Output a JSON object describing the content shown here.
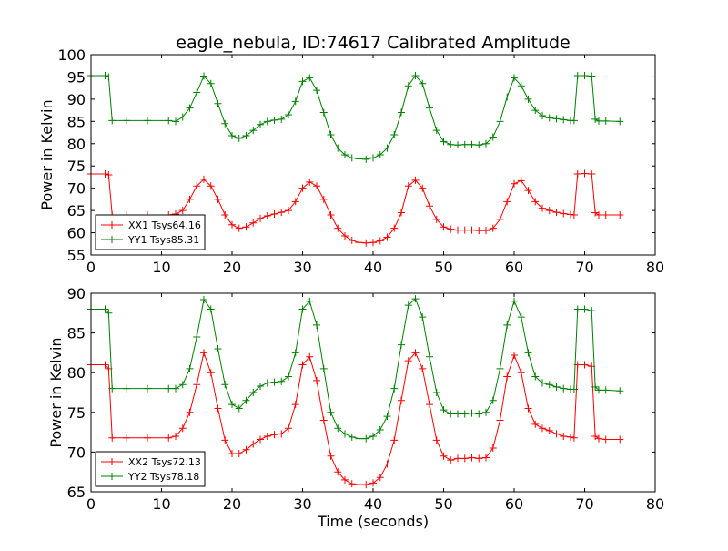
{
  "figure": {
    "title": "eagle_nebula, ID:74617 Calibrated Amplitude"
  },
  "chart_data": [
    {
      "type": "line",
      "title": "eagle_nebula, ID:74617 Calibrated Amplitude",
      "xlabel": "",
      "ylabel": "Power in Kelvin",
      "xlim": [
        0,
        80
      ],
      "ylim": [
        55,
        100
      ],
      "xticks": [
        0,
        10,
        20,
        30,
        40,
        50,
        60,
        70,
        80
      ],
      "yticks": [
        55,
        60,
        65,
        70,
        75,
        80,
        85,
        90,
        95,
        100
      ],
      "grid": false,
      "legend_position": "bottom-left",
      "marker": "+",
      "series": [
        {
          "name": "XX1 Tsys64.16",
          "color": "#ff0000",
          "x": [
            0.0,
            2.0,
            2.5,
            3.0,
            5.0,
            8.0,
            11.0,
            12.0,
            13.0,
            14.0,
            15.0,
            16.0,
            17.0,
            18.0,
            19.0,
            20.0,
            21.0,
            22.0,
            23.0,
            24.0,
            25.0,
            26.0,
            27.0,
            28.0,
            29.0,
            30.0,
            31.0,
            32.0,
            33.0,
            34.0,
            35.0,
            36.0,
            37.0,
            38.0,
            39.0,
            40.0,
            41.0,
            42.0,
            43.0,
            44.0,
            45.0,
            46.0,
            47.0,
            48.0,
            49.0,
            50.0,
            51.0,
            52.0,
            53.0,
            54.0,
            55.0,
            56.0,
            57.0,
            58.0,
            59.0,
            60.0,
            61.0,
            62.0,
            63.0,
            64.0,
            65.0,
            66.0,
            67.0,
            68.0,
            68.5,
            69.0,
            70.0,
            71.0,
            71.5,
            72.0,
            73.0,
            75.0
          ],
          "y": [
            73.2,
            73.2,
            73.0,
            64.0,
            64.0,
            64.0,
            64.0,
            64.2,
            65.0,
            67.5,
            70.5,
            72.0,
            70.5,
            67.5,
            64.0,
            61.8,
            61.0,
            61.3,
            62.2,
            63.2,
            63.8,
            64.2,
            64.6,
            65.0,
            67.0,
            70.0,
            71.4,
            70.5,
            67.5,
            64.0,
            61.0,
            59.3,
            58.3,
            57.8,
            57.7,
            57.8,
            58.2,
            59.0,
            61.0,
            64.5,
            70.5,
            71.8,
            70.0,
            66.0,
            63.0,
            61.3,
            60.8,
            60.6,
            60.6,
            60.6,
            60.5,
            60.5,
            61.0,
            63.0,
            67.0,
            71.0,
            71.7,
            69.5,
            67.0,
            65.5,
            65.0,
            64.6,
            64.3,
            64.1,
            64.0,
            73.2,
            73.3,
            73.2,
            64.5,
            64.0,
            64.0,
            64.0
          ]
        },
        {
          "name": "YY1 Tsys85.31",
          "color": "#008000",
          "x": [
            0.0,
            2.0,
            2.5,
            3.0,
            5.0,
            8.0,
            11.0,
            12.0,
            13.0,
            14.0,
            15.0,
            16.0,
            17.0,
            18.0,
            19.0,
            20.0,
            21.0,
            22.0,
            23.0,
            24.0,
            25.0,
            26.0,
            27.0,
            28.0,
            29.0,
            30.0,
            31.0,
            32.0,
            33.0,
            34.0,
            35.0,
            36.0,
            37.0,
            38.0,
            39.0,
            40.0,
            41.0,
            42.0,
            43.0,
            44.0,
            45.0,
            46.0,
            47.0,
            48.0,
            49.0,
            50.0,
            51.0,
            52.0,
            53.0,
            54.0,
            55.0,
            56.0,
            57.0,
            58.0,
            59.0,
            60.0,
            61.0,
            62.0,
            63.0,
            64.0,
            65.0,
            66.0,
            67.0,
            68.0,
            68.5,
            69.0,
            70.0,
            71.0,
            71.5,
            72.0,
            73.0,
            75.0
          ],
          "y": [
            95.3,
            95.3,
            95.0,
            85.2,
            85.2,
            85.2,
            85.2,
            85.0,
            86.0,
            88.0,
            91.5,
            95.2,
            93.5,
            89.0,
            84.5,
            81.8,
            81.2,
            81.8,
            83.0,
            84.3,
            85.0,
            85.3,
            85.5,
            86.5,
            89.5,
            94.0,
            94.8,
            92.0,
            87.0,
            82.0,
            79.0,
            77.5,
            76.8,
            76.6,
            76.5,
            76.8,
            77.5,
            79.0,
            82.0,
            87.0,
            93.0,
            95.3,
            93.5,
            88.0,
            83.0,
            80.5,
            79.8,
            79.7,
            79.8,
            79.8,
            79.7,
            80.0,
            81.5,
            85.0,
            90.5,
            94.8,
            93.0,
            90.0,
            87.5,
            86.3,
            85.8,
            85.6,
            85.4,
            85.2,
            85.2,
            95.3,
            95.3,
            95.2,
            85.5,
            85.1,
            85.1,
            85.0
          ]
        }
      ]
    },
    {
      "type": "line",
      "title": "",
      "xlabel": "Time (seconds)",
      "ylabel": "Power in Kelvin",
      "xlim": [
        0,
        80
      ],
      "ylim": [
        65,
        90
      ],
      "xticks": [
        0,
        10,
        20,
        30,
        40,
        50,
        60,
        70,
        80
      ],
      "yticks": [
        65,
        70,
        75,
        80,
        85,
        90
      ],
      "grid": false,
      "legend_position": "bottom-left",
      "marker": "+",
      "series": [
        {
          "name": "XX2 Tsys72.13",
          "color": "#ff0000",
          "x": [
            0.0,
            2.0,
            2.5,
            3.0,
            5.0,
            8.0,
            11.0,
            12.0,
            13.0,
            14.0,
            15.0,
            16.0,
            17.0,
            18.0,
            19.0,
            20.0,
            21.0,
            22.0,
            23.0,
            24.0,
            25.0,
            26.0,
            27.0,
            28.0,
            29.0,
            30.0,
            31.0,
            32.0,
            33.0,
            34.0,
            35.0,
            36.0,
            37.0,
            38.0,
            39.0,
            40.0,
            41.0,
            42.0,
            43.0,
            44.0,
            45.0,
            46.0,
            47.0,
            48.0,
            49.0,
            50.0,
            51.0,
            52.0,
            53.0,
            54.0,
            55.0,
            56.0,
            57.0,
            58.0,
            59.0,
            60.0,
            61.0,
            62.0,
            63.0,
            64.0,
            65.0,
            66.0,
            67.0,
            68.0,
            68.5,
            69.0,
            70.0,
            71.0,
            71.5,
            72.0,
            73.0,
            75.0
          ],
          "y": [
            81.0,
            81.0,
            80.5,
            71.8,
            71.8,
            71.8,
            71.8,
            72.0,
            73.0,
            75.0,
            78.5,
            82.5,
            80.0,
            75.5,
            71.5,
            69.8,
            69.8,
            70.3,
            71.0,
            71.6,
            72.0,
            72.2,
            72.3,
            73.0,
            76.0,
            81.0,
            82.0,
            79.0,
            74.0,
            69.5,
            67.5,
            66.5,
            66.0,
            65.9,
            65.9,
            66.1,
            66.8,
            68.5,
            71.5,
            76.5,
            81.5,
            82.5,
            80.5,
            76.0,
            71.5,
            69.5,
            69.0,
            69.2,
            69.2,
            69.3,
            69.2,
            69.3,
            70.5,
            74.0,
            79.5,
            82.2,
            80.0,
            75.5,
            73.5,
            73.0,
            72.7,
            72.3,
            72.0,
            71.9,
            71.8,
            81.0,
            81.0,
            80.8,
            72.0,
            71.7,
            71.6,
            71.6
          ]
        },
        {
          "name": "YY2 Tsys78.18",
          "color": "#008000",
          "x": [
            0.0,
            2.0,
            2.5,
            3.0,
            5.0,
            8.0,
            11.0,
            12.0,
            13.0,
            14.0,
            15.0,
            16.0,
            17.0,
            18.0,
            19.0,
            20.0,
            21.0,
            22.0,
            23.0,
            24.0,
            25.0,
            26.0,
            27.0,
            28.0,
            29.0,
            30.0,
            31.0,
            32.0,
            33.0,
            34.0,
            35.0,
            36.0,
            37.0,
            38.0,
            39.0,
            40.0,
            41.0,
            42.0,
            43.0,
            44.0,
            45.0,
            46.0,
            47.0,
            48.0,
            49.0,
            50.0,
            51.0,
            52.0,
            53.0,
            54.0,
            55.0,
            56.0,
            57.0,
            58.0,
            59.0,
            60.0,
            61.0,
            62.0,
            63.0,
            64.0,
            65.0,
            66.0,
            67.0,
            68.0,
            68.5,
            69.0,
            70.0,
            71.0,
            71.5,
            72.0,
            73.0,
            75.0
          ],
          "y": [
            88.0,
            88.0,
            87.5,
            78.0,
            78.0,
            78.0,
            78.0,
            78.0,
            78.5,
            80.5,
            84.5,
            89.2,
            88.0,
            83.0,
            78.5,
            76.0,
            75.5,
            76.5,
            77.5,
            78.3,
            78.7,
            78.8,
            78.9,
            79.5,
            82.5,
            88.0,
            89.0,
            86.0,
            80.5,
            75.0,
            73.0,
            72.3,
            71.9,
            71.7,
            71.7,
            72.0,
            72.8,
            74.5,
            78.0,
            83.5,
            88.5,
            89.3,
            87.0,
            82.0,
            77.5,
            75.3,
            74.8,
            74.8,
            74.8,
            74.9,
            74.8,
            75.0,
            76.5,
            80.5,
            86.0,
            89.0,
            87.0,
            82.5,
            79.5,
            78.7,
            78.5,
            78.2,
            78.0,
            77.9,
            77.9,
            88.0,
            88.0,
            87.8,
            78.2,
            77.8,
            77.8,
            77.7
          ]
        }
      ]
    }
  ]
}
